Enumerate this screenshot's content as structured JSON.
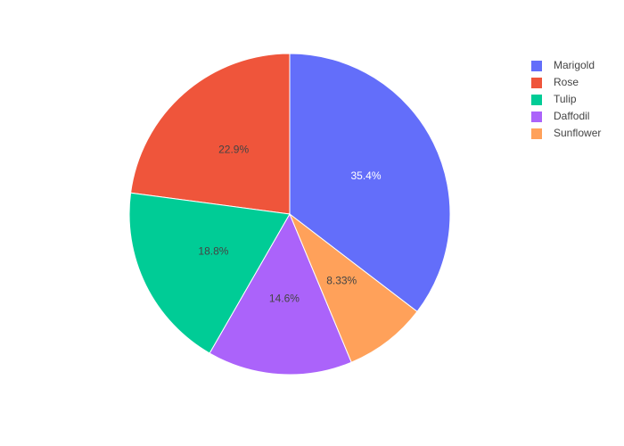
{
  "chart_data": {
    "type": "pie",
    "categories": [
      "Marigold",
      "Rose",
      "Tulip",
      "Daffodil",
      "Sunflower"
    ],
    "values": [
      35.4,
      22.9,
      18.8,
      14.6,
      8.33
    ],
    "value_labels": [
      "35.4%",
      "22.9%",
      "18.8%",
      "14.6%",
      "8.33%"
    ],
    "colors": [
      "#636efa",
      "#ef553b",
      "#00cc96",
      "#ab63fa",
      "#ffa15a"
    ],
    "direction": "counterclockwise",
    "legend": "top-right"
  }
}
